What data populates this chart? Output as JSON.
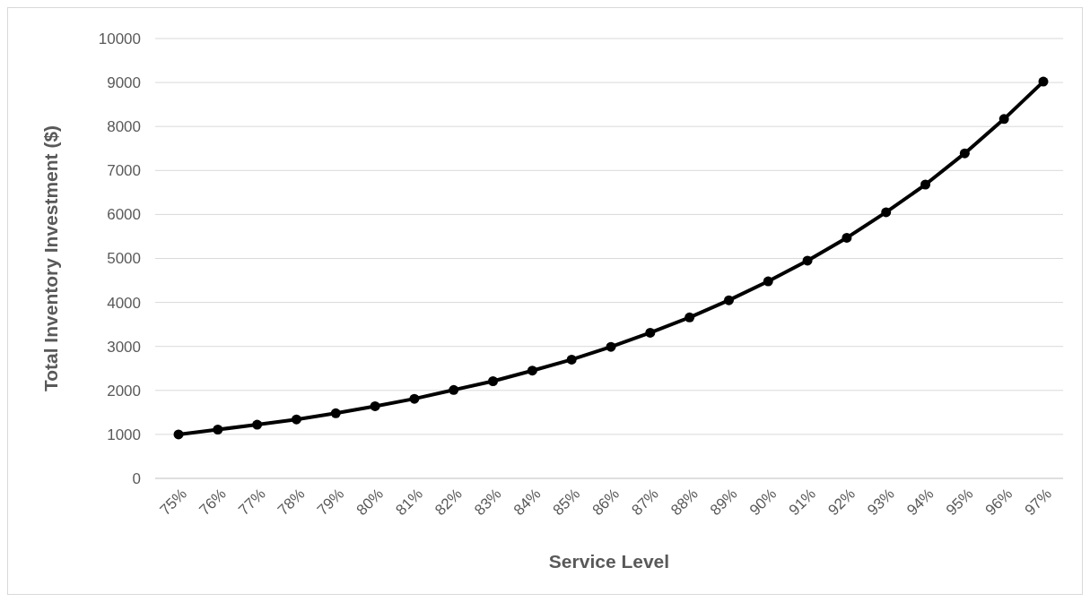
{
  "chart_data": {
    "type": "line",
    "xlabel": "Service Level",
    "ylabel": "Total Inventory Investment ($)",
    "categories": [
      "75%",
      "76%",
      "77%",
      "78%",
      "79%",
      "80%",
      "81%",
      "82%",
      "83%",
      "84%",
      "85%",
      "86%",
      "87%",
      "88%",
      "89%",
      "90%",
      "91%",
      "92%",
      "93%",
      "94%",
      "95%",
      "96%",
      "97%"
    ],
    "series": [
      {
        "color": "#000000",
        "values": [
          1000,
          1110,
          1220,
          1340,
          1480,
          1640,
          1810,
          2010,
          2210,
          2450,
          2700,
          2990,
          3310,
          3660,
          4050,
          4480,
          4950,
          5470,
          6050,
          6680,
          7390,
          8170,
          9020
        ]
      }
    ],
    "ylim": [
      0,
      10000
    ],
    "yticks": [
      0,
      1000,
      2000,
      3000,
      4000,
      5000,
      6000,
      7000,
      8000,
      9000,
      10000
    ],
    "grid": "y",
    "marker": "circle",
    "line_style": "solid"
  }
}
